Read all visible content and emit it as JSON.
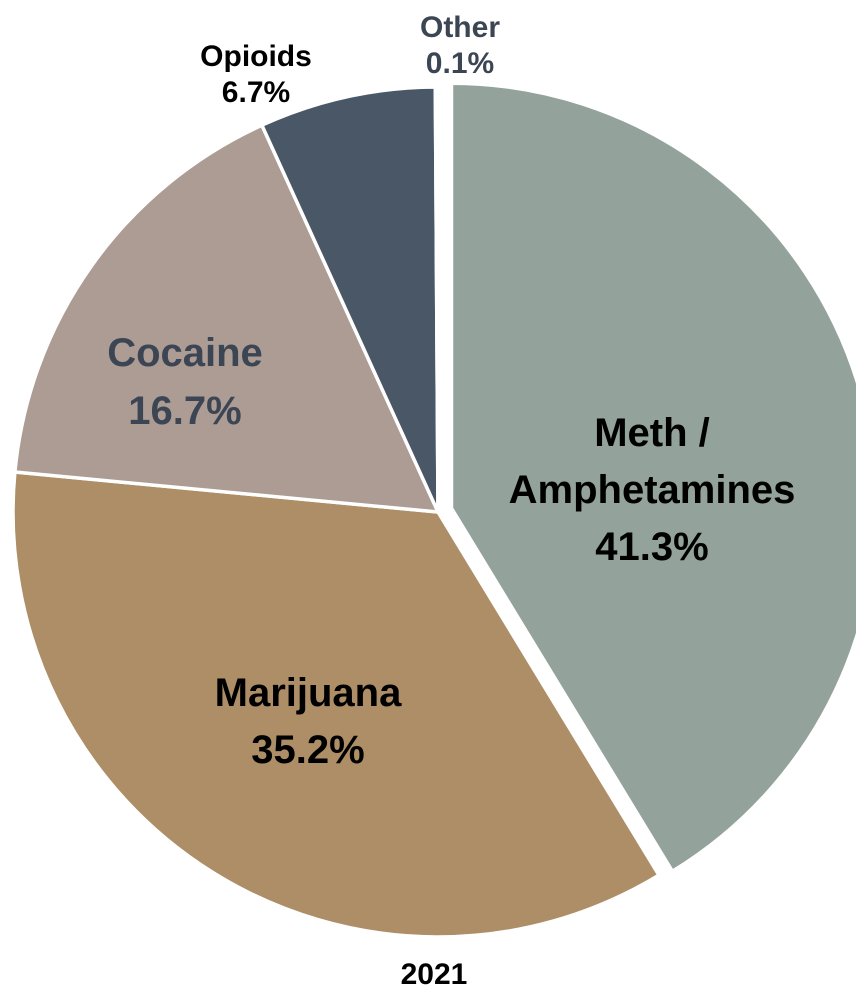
{
  "chart_data": {
    "type": "pie",
    "title": "",
    "subtitle": "",
    "caption": "2021",
    "start_angle_deg": 0,
    "direction": "clockwise",
    "slices": [
      {
        "label": "Meth /",
        "label_line2": "Amphetamines",
        "value_text": "41.3%",
        "value": 41.3,
        "color": "#93a29a",
        "label_color": "#000000",
        "exploded": true,
        "label_position": "inside"
      },
      {
        "label": "Marijuana",
        "label_line2": "",
        "value_text": "35.2%",
        "value": 35.2,
        "color": "#ad8e67",
        "label_color": "#000000",
        "exploded": false,
        "label_position": "inside"
      },
      {
        "label": "Cocaine",
        "label_line2": "",
        "value_text": "16.7%",
        "value": 16.7,
        "color": "#ac9c94",
        "label_color": "#3c4553",
        "exploded": false,
        "label_position": "inside"
      },
      {
        "label": "Opioids",
        "label_line2": "",
        "value_text": "6.7%",
        "value": 6.7,
        "color": "#4a5767",
        "label_color": "#000000",
        "exploded": false,
        "label_position": "outside"
      },
      {
        "label": "Other",
        "label_line2": "",
        "value_text": "0.1%",
        "value": 0.1,
        "color": "#8d99aa",
        "label_color": "#3c4553",
        "exploded": false,
        "label_position": "outside"
      }
    ]
  }
}
